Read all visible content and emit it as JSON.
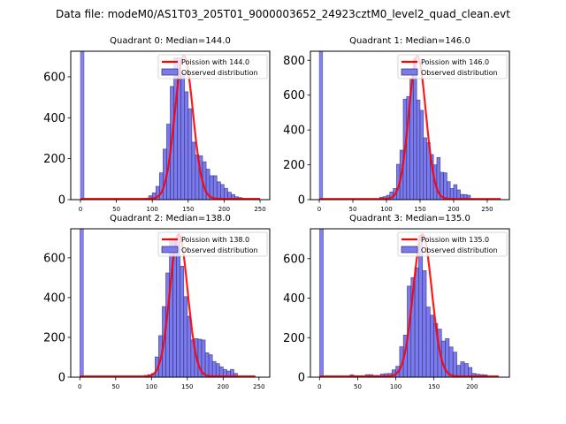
{
  "suptitle": "Data file: modeM0/AS1T03_205T01_9000003652_24923cztM0_level2_quad_clean.evt",
  "chart_data": [
    {
      "type": "bar",
      "title": "Quadrant 0: Median=144.0",
      "xlim": [
        -13.5,
        263.5
      ],
      "ylim": [
        0,
        725
      ],
      "xticks": [
        0,
        50,
        100,
        150,
        200,
        250
      ],
      "yticks": [
        0,
        200,
        400,
        600
      ],
      "bin_width": 5,
      "zero_bin": {
        "x": 0,
        "value": 725,
        "clipped": true
      },
      "bins_start": [
        90,
        95,
        100,
        105,
        110,
        115,
        120,
        125,
        130,
        135,
        140,
        145,
        150,
        155,
        160,
        165,
        170,
        175,
        180,
        185,
        190,
        195,
        200,
        205,
        210,
        215,
        220,
        225
      ],
      "values": [
        5,
        19,
        33,
        65,
        131,
        247,
        369,
        553,
        693,
        693,
        618,
        527,
        444,
        281,
        218,
        214,
        185,
        149,
        117,
        117,
        87,
        74,
        55,
        36,
        25,
        14,
        10,
        4
      ],
      "poisson_mean": 144.0,
      "poisson_peak": 700,
      "poisson_xrange": [
        0,
        250
      ],
      "legend": [
        "Poission with 144.0",
        "Observed distribution"
      ],
      "legend_loc": "upper right"
    },
    {
      "type": "bar",
      "title": "Quadrant 1: Median=146.0",
      "xlim": [
        -13.2,
        283
      ],
      "ylim": [
        0,
        852
      ],
      "xticks": [
        0,
        50,
        100,
        150,
        200,
        250
      ],
      "yticks": [
        0,
        200,
        400,
        600,
        800
      ],
      "bin_width": 5,
      "zero_bin": {
        "x": 0,
        "value": 852,
        "clipped": true
      },
      "bins_start": [
        90,
        95,
        100,
        105,
        110,
        115,
        120,
        125,
        130,
        135,
        140,
        145,
        150,
        155,
        160,
        165,
        170,
        175,
        180,
        185,
        190,
        195,
        200,
        205,
        210,
        215,
        220,
        225,
        230,
        240,
        250,
        265
      ],
      "values": [
        14,
        17,
        25,
        44,
        64,
        203,
        284,
        577,
        592,
        694,
        809,
        572,
        513,
        355,
        327,
        259,
        200,
        242,
        157,
        154,
        103,
        64,
        86,
        56,
        30,
        29,
        25,
        3,
        2,
        3,
        2,
        2
      ],
      "poisson_mean": 146.0,
      "poisson_peak": 820,
      "poisson_xrange": [
        0,
        270
      ],
      "legend": [
        "Poission with 146.0",
        "Observed distribution"
      ],
      "legend_loc": "upper right"
    },
    {
      "type": "bar",
      "title": "Quadrant 2: Median=138.0",
      "xlim": [
        -12.7,
        265
      ],
      "ylim": [
        0,
        746
      ],
      "xticks": [
        0,
        50,
        100,
        150,
        200,
        250
      ],
      "yticks": [
        0,
        200,
        400,
        600
      ],
      "bin_width": 5,
      "zero_bin": {
        "x": 0,
        "value": 746,
        "clipped": true
      },
      "bins_start": [
        90,
        95,
        100,
        105,
        110,
        115,
        120,
        125,
        130,
        135,
        140,
        145,
        150,
        155,
        160,
        165,
        170,
        175,
        180,
        185,
        190,
        195,
        200,
        205,
        210,
        215
      ],
      "values": [
        9,
        13,
        19,
        102,
        209,
        355,
        524,
        700,
        699,
        714,
        558,
        405,
        306,
        187,
        194,
        191,
        187,
        123,
        113,
        79,
        68,
        52,
        39,
        31,
        39,
        19
      ],
      "poisson_mean": 138.0,
      "poisson_peak": 715,
      "poisson_xrange": [
        0,
        245
      ],
      "legend": [
        "Poission with 138.0",
        "Observed distribution"
      ],
      "legend_loc": "upper right"
    },
    {
      "type": "bar",
      "title": "Quadrant 3: Median=135.0",
      "xlim": [
        -12,
        249
      ],
      "ylim": [
        0,
        751
      ],
      "xticks": [
        0,
        50,
        100,
        150,
        200
      ],
      "yticks": [
        0,
        200,
        400,
        600
      ],
      "bin_width": 5,
      "zero_bin": {
        "x": 0,
        "value": 751,
        "clipped": true
      },
      "bins_start": [
        40,
        45,
        50,
        55,
        60,
        65,
        70,
        75,
        80,
        85,
        90,
        95,
        100,
        105,
        110,
        115,
        120,
        125,
        130,
        135,
        140,
        145,
        150,
        155,
        160,
        165,
        170,
        175,
        180,
        185,
        190,
        195,
        200,
        205,
        210,
        215
      ],
      "values": [
        12,
        5,
        7,
        7,
        13,
        13,
        9,
        9,
        16,
        18,
        19,
        37,
        55,
        154,
        213,
        461,
        504,
        554,
        719,
        539,
        355,
        314,
        272,
        243,
        183,
        195,
        153,
        127,
        60,
        78,
        69,
        49,
        19,
        15,
        13,
        12
      ],
      "poisson_mean": 135.0,
      "poisson_peak": 720,
      "poisson_xrange": [
        0,
        235
      ],
      "legend": [
        "Poission with 135.0",
        "Observed distribution"
      ],
      "legend_loc": "upper right"
    }
  ],
  "colors": {
    "bar_fill": "#7b7bef",
    "bar_edge": "#2b2b6b",
    "poisson_line": "#ff0000"
  }
}
